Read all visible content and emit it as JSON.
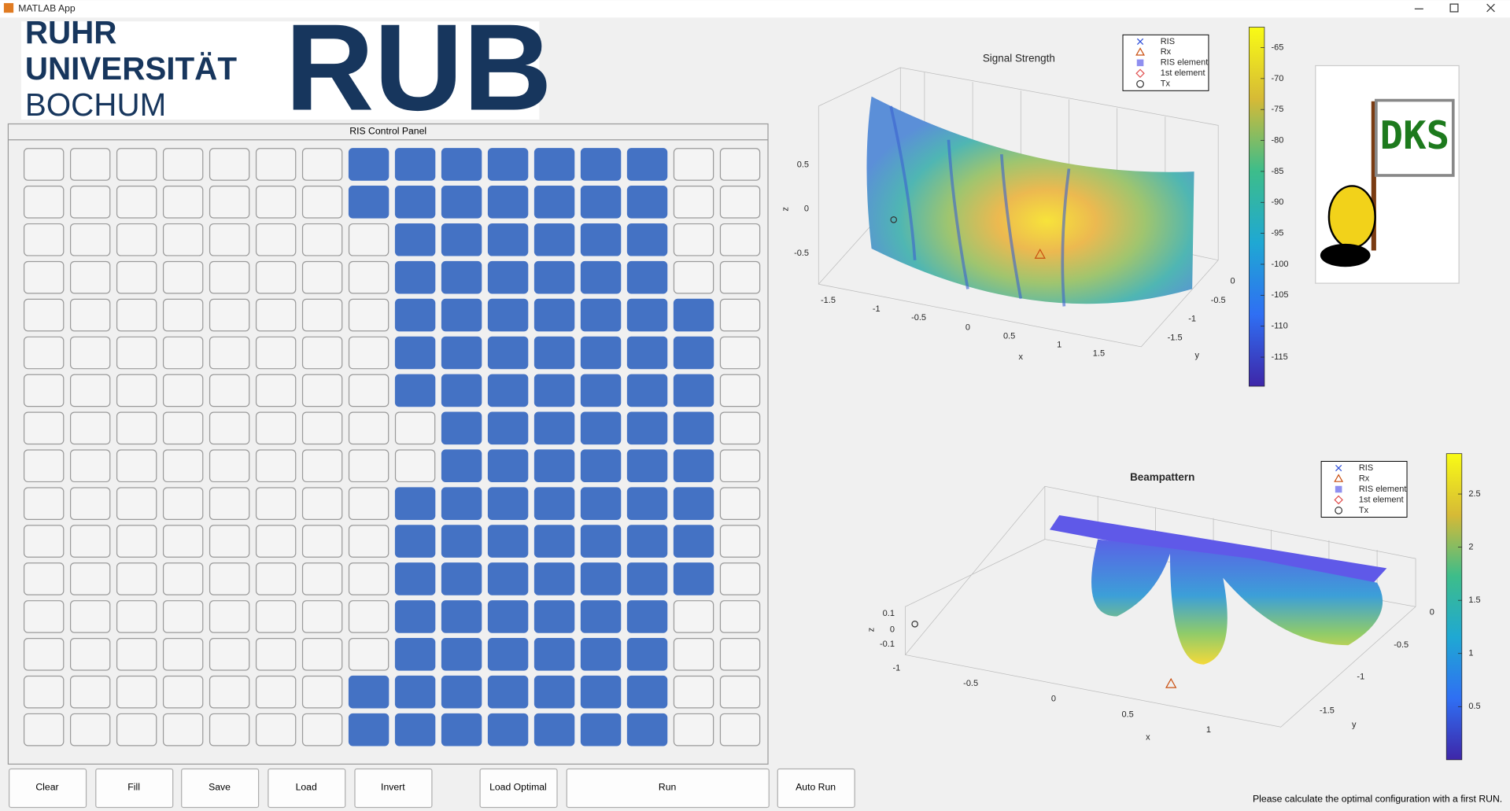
{
  "window": {
    "title": "MATLAB App"
  },
  "logo": {
    "lines": [
      "RUHR",
      "UNIVERSITÄT",
      "BOCHUM"
    ],
    "mark": "RUB"
  },
  "control_panel": {
    "title": "RIS Control Panel",
    "grid": [
      [
        0,
        0,
        0,
        0,
        0,
        0,
        0,
        1,
        1,
        1,
        1,
        1,
        1,
        1,
        0,
        0
      ],
      [
        0,
        0,
        0,
        0,
        0,
        0,
        0,
        1,
        1,
        1,
        1,
        1,
        1,
        1,
        0,
        0
      ],
      [
        0,
        0,
        0,
        0,
        0,
        0,
        0,
        0,
        1,
        1,
        1,
        1,
        1,
        1,
        0,
        0
      ],
      [
        0,
        0,
        0,
        0,
        0,
        0,
        0,
        0,
        1,
        1,
        1,
        1,
        1,
        1,
        0,
        0
      ],
      [
        0,
        0,
        0,
        0,
        0,
        0,
        0,
        0,
        1,
        1,
        1,
        1,
        1,
        1,
        1,
        0
      ],
      [
        0,
        0,
        0,
        0,
        0,
        0,
        0,
        0,
        1,
        1,
        1,
        1,
        1,
        1,
        1,
        0
      ],
      [
        0,
        0,
        0,
        0,
        0,
        0,
        0,
        0,
        1,
        1,
        1,
        1,
        1,
        1,
        1,
        0
      ],
      [
        0,
        0,
        0,
        0,
        0,
        0,
        0,
        0,
        0,
        1,
        1,
        1,
        1,
        1,
        1,
        0
      ],
      [
        0,
        0,
        0,
        0,
        0,
        0,
        0,
        0,
        0,
        1,
        1,
        1,
        1,
        1,
        1,
        0
      ],
      [
        0,
        0,
        0,
        0,
        0,
        0,
        0,
        0,
        1,
        1,
        1,
        1,
        1,
        1,
        1,
        0
      ],
      [
        0,
        0,
        0,
        0,
        0,
        0,
        0,
        0,
        1,
        1,
        1,
        1,
        1,
        1,
        1,
        0
      ],
      [
        0,
        0,
        0,
        0,
        0,
        0,
        0,
        0,
        1,
        1,
        1,
        1,
        1,
        1,
        1,
        0
      ],
      [
        0,
        0,
        0,
        0,
        0,
        0,
        0,
        0,
        1,
        1,
        1,
        1,
        1,
        1,
        0,
        0
      ],
      [
        0,
        0,
        0,
        0,
        0,
        0,
        0,
        0,
        1,
        1,
        1,
        1,
        1,
        1,
        0,
        0
      ],
      [
        0,
        0,
        0,
        0,
        0,
        0,
        0,
        1,
        1,
        1,
        1,
        1,
        1,
        1,
        0,
        0
      ],
      [
        0,
        0,
        0,
        0,
        0,
        0,
        0,
        1,
        1,
        1,
        1,
        1,
        1,
        1,
        0,
        0
      ]
    ]
  },
  "buttons": [
    "Clear",
    "Fill",
    "Save",
    "Load",
    "Invert",
    "Load Optimal",
    "Run",
    "Auto Run"
  ],
  "signal_plot": {
    "title": "Signal Strength",
    "legend": [
      "RIS",
      "Rx",
      "RIS element",
      "1st element",
      "Tx"
    ],
    "xlabel": "x",
    "ylabel": "y",
    "zlabel": "z",
    "xticks": [
      -1.5,
      -1,
      -0.5,
      0,
      0.5,
      1,
      1.5
    ],
    "yticks": [
      0,
      -0.5,
      -1,
      -1.5
    ],
    "zticks": [
      0.5,
      0,
      -0.5
    ],
    "colorbar": {
      "lim": [
        -119.7,
        -61.7
      ],
      "ticks": [
        -65,
        -70,
        -75,
        -80,
        -85,
        -90,
        -95,
        -100,
        -105,
        -110,
        -115
      ]
    }
  },
  "beam_plot": {
    "title": "Beampattern",
    "legend": [
      "RIS",
      "Rx",
      "RIS element",
      "1st element",
      "Tx"
    ],
    "xlabel": "x",
    "ylabel": "y",
    "zlabel": "z",
    "xticks": [
      -1,
      -0.5,
      0,
      0.5,
      1
    ],
    "yticks": [
      0,
      -0.5,
      -1,
      -1.5
    ],
    "zticks": [
      0.1,
      0,
      -0.1
    ],
    "colorbar": {
      "lim": [
        0,
        2.88
      ],
      "ticks": [
        2.5,
        2,
        1.5,
        1,
        0.5
      ]
    }
  },
  "dks_logo": {
    "text": "DKS"
  },
  "status": "Please calculate the optimal configuration with a first RUN."
}
